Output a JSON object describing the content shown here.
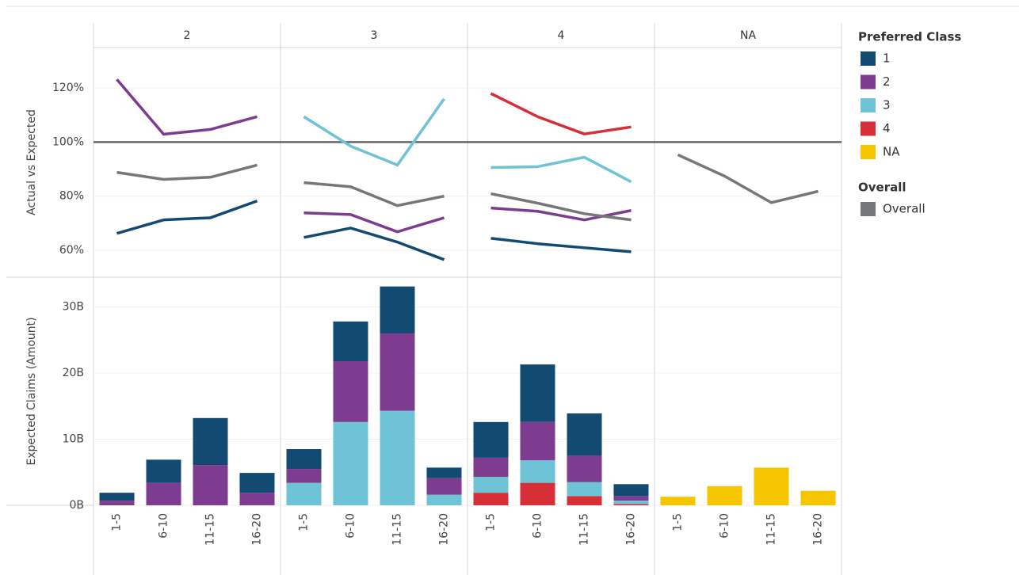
{
  "chart_data": {
    "type": "faceted-line-bar",
    "facets": [
      "2",
      "3",
      "4",
      "NA"
    ],
    "categories": [
      "1-5",
      "6-10",
      "11-15",
      "16-20"
    ],
    "legend_titles": [
      "Preferred Class",
      "Overall"
    ],
    "top": {
      "type": "line",
      "y_label": "Actual vs Expected",
      "ylim": [
        50,
        135
      ],
      "yticks": [
        {
          "value": 60,
          "label": "60%"
        },
        {
          "value": 80,
          "label": "80%"
        },
        {
          "value": 100,
          "label": "100%"
        },
        {
          "value": 120,
          "label": "120%"
        }
      ],
      "reference": 100,
      "series": [
        {
          "name": "1",
          "color": "#124a72",
          "values": [
            [
              66.2,
              71.2,
              72,
              78.2
            ],
            [
              64.7,
              68.2,
              63,
              56.5
            ],
            [
              64.4,
              62.4,
              60.9,
              59.4
            ],
            null
          ]
        },
        {
          "name": "2",
          "color": "#7d3c8f",
          "values": [
            [
              123.2,
              102.9,
              104.7,
              109.4
            ],
            [
              73.8,
              73.2,
              66.8,
              72
            ],
            [
              75.6,
              74.4,
              71.2,
              74.7
            ],
            null
          ]
        },
        {
          "name": "3",
          "color": "#6fc3d6",
          "values": [
            null,
            [
              109.4,
              98.5,
              91.5,
              116
            ],
            [
              90.6,
              90.9,
              94.4,
              85.3
            ],
            null
          ]
        },
        {
          "name": "4",
          "color": "#d62f38",
          "values": [
            null,
            null,
            [
              118,
              109.4,
              103,
              105.6
            ],
            null
          ]
        },
        {
          "name": "Overall",
          "color": "#76777b",
          "values": [
            [
              88.8,
              86.2,
              87,
              91.5
            ],
            [
              85,
              83.5,
              76.5,
              80
            ],
            [
              80.9,
              77.4,
              73.5,
              71.2
            ],
            [
              95.3,
              87.4,
              77.6,
              81.8
            ]
          ]
        }
      ]
    },
    "bottom": {
      "type": "stacked-bar",
      "y_label": "Expected Claims (Amount)",
      "ylim": [
        0,
        34.5
      ],
      "yticks": [
        {
          "value": 0,
          "label": "0B"
        },
        {
          "value": 10,
          "label": "10B"
        },
        {
          "value": 20,
          "label": "20B"
        },
        {
          "value": 30,
          "label": "30B"
        }
      ],
      "series": [
        {
          "name": "1",
          "color": "#124a72",
          "values": [
            [
              1.2,
              3.5,
              7.1,
              3.0
            ],
            [
              3.0,
              6.0,
              7.1,
              1.6
            ],
            [
              5.4,
              8.7,
              6.4,
              1.8
            ],
            null
          ]
        },
        {
          "name": "2",
          "color": "#7d3c8f",
          "values": [
            [
              0.7,
              3.4,
              6.1,
              1.9
            ],
            [
              2.1,
              9.2,
              11.7,
              2.5
            ],
            [
              2.9,
              5.8,
              4.0,
              0.7
            ],
            null
          ]
        },
        {
          "name": "3",
          "color": "#6fc3d6",
          "values": [
            null,
            [
              3.4,
              12.6,
              14.3,
              1.6
            ],
            [
              2.4,
              3.4,
              2.1,
              0.5
            ],
            null
          ]
        },
        {
          "name": "4",
          "color": "#d62f38",
          "values": [
            null,
            null,
            [
              1.9,
              3.4,
              1.4,
              0.2
            ],
            null
          ]
        },
        {
          "name": "NA",
          "color": "#f5c600",
          "values": [
            null,
            null,
            null,
            [
              1.3,
              2.9,
              5.7,
              2.2
            ]
          ]
        }
      ]
    }
  }
}
